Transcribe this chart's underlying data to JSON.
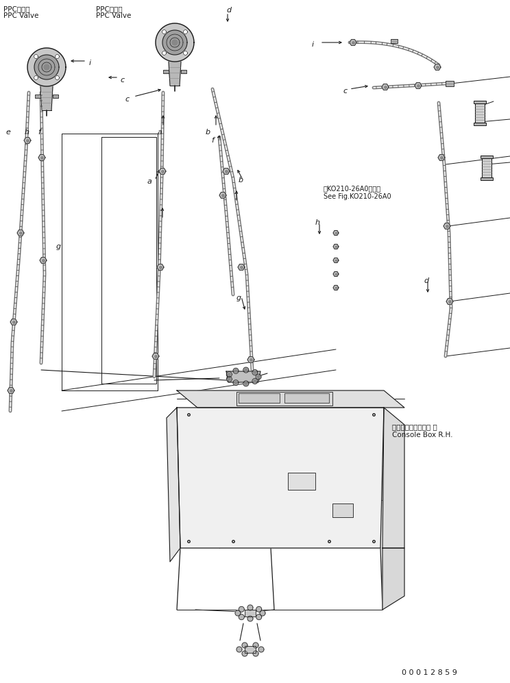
{
  "bg_color": "#ffffff",
  "line_color": "#1a1a1a",
  "fig_width": 7.44,
  "fig_height": 9.97,
  "dpi": 100,
  "part_number": "0 0 0 1 2 8 5 9",
  "labels": {
    "ppc_valve_left_jp": "PPCバルブ",
    "ppc_valve_left_en": "PPC Valve",
    "ppc_valve_right_jp": "PPCバルブ",
    "ppc_valve_right_en": "PPC Valve",
    "console_box_jp": "コンソールボックス 右",
    "console_box_en": "Console Box R.H.",
    "see_fig_jp": "第KO210-26A0図参照",
    "see_fig_en": "See Fig.KO210-26A0"
  }
}
